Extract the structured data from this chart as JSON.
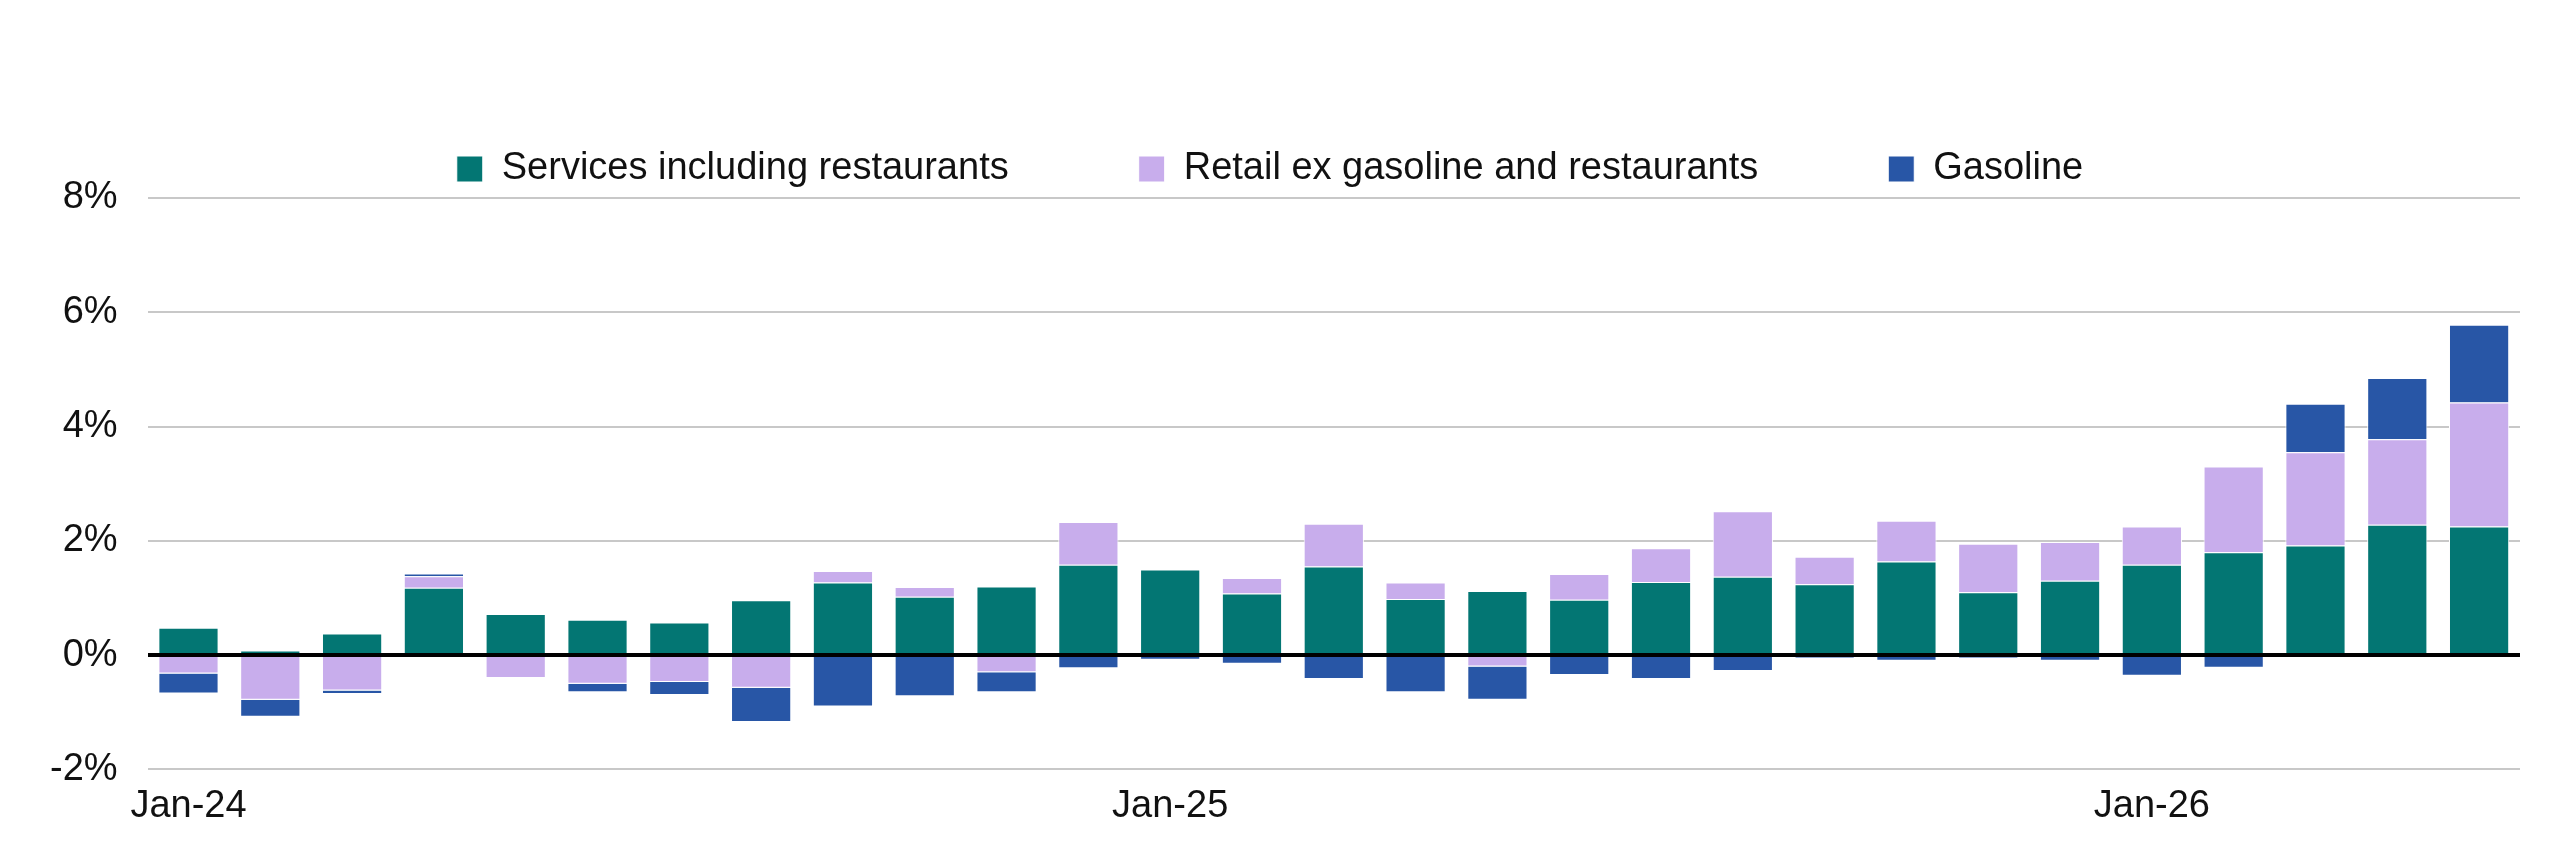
{
  "chart_data": {
    "type": "bar",
    "stacked": true,
    "categories": [
      "Jan-24",
      null,
      null,
      null,
      null,
      null,
      null,
      null,
      null,
      null,
      null,
      null,
      "Jan-25",
      null,
      null,
      null,
      null,
      null,
      null,
      null,
      null,
      null,
      null,
      null,
      "Jan-26",
      null,
      null,
      null,
      null
    ],
    "series": [
      {
        "name": "Services including restaurants",
        "color": "#037673",
        "values": [
          0.48,
          0.08,
          0.38,
          1.18,
          0.72,
          0.62,
          0.57,
          0.96,
          1.27,
          1.02,
          1.2,
          1.58,
          1.5,
          1.08,
          1.55,
          0.98,
          1.12,
          0.97,
          1.28,
          1.37,
          1.24,
          1.64,
          1.1,
          1.3,
          1.58,
          1.8,
          1.92,
          2.28,
          2.25
        ]
      },
      {
        "name": "Retail ex gasoline and restaurants",
        "color": "#c8adec",
        "values": [
          -0.32,
          -0.78,
          -0.62,
          0.2,
          -0.4,
          -0.5,
          -0.47,
          -0.57,
          0.2,
          0.17,
          -0.3,
          0.75,
          null,
          0.27,
          0.75,
          0.29,
          -0.2,
          0.45,
          0.59,
          1.15,
          0.48,
          0.71,
          0.85,
          0.68,
          0.67,
          1.5,
          1.63,
          1.5,
          2.17
        ]
      },
      {
        "name": "Gasoline",
        "color": "#2856a6",
        "values": [
          -0.35,
          -0.3,
          -0.06,
          0.05,
          null,
          -0.15,
          -0.23,
          -0.6,
          -0.9,
          -0.72,
          -0.35,
          -0.23,
          -0.08,
          -0.15,
          -0.42,
          -0.65,
          -0.58,
          -0.35,
          -0.42,
          -0.28,
          -0.05,
          -0.1,
          -0.05,
          -0.1,
          -0.36,
          -0.22,
          0.85,
          1.07,
          1.36
        ]
      }
    ],
    "ylim": [
      -2,
      8
    ],
    "yticks": [
      {
        "value": -2,
        "label": "-2%"
      },
      {
        "value": 0,
        "label": "0%"
      },
      {
        "value": 2,
        "label": "2%"
      },
      {
        "value": 4,
        "label": "4%"
      },
      {
        "value": 6,
        "label": "6%"
      },
      {
        "value": 8,
        "label": "8%"
      }
    ],
    "grid": "y",
    "legend": "top"
  }
}
